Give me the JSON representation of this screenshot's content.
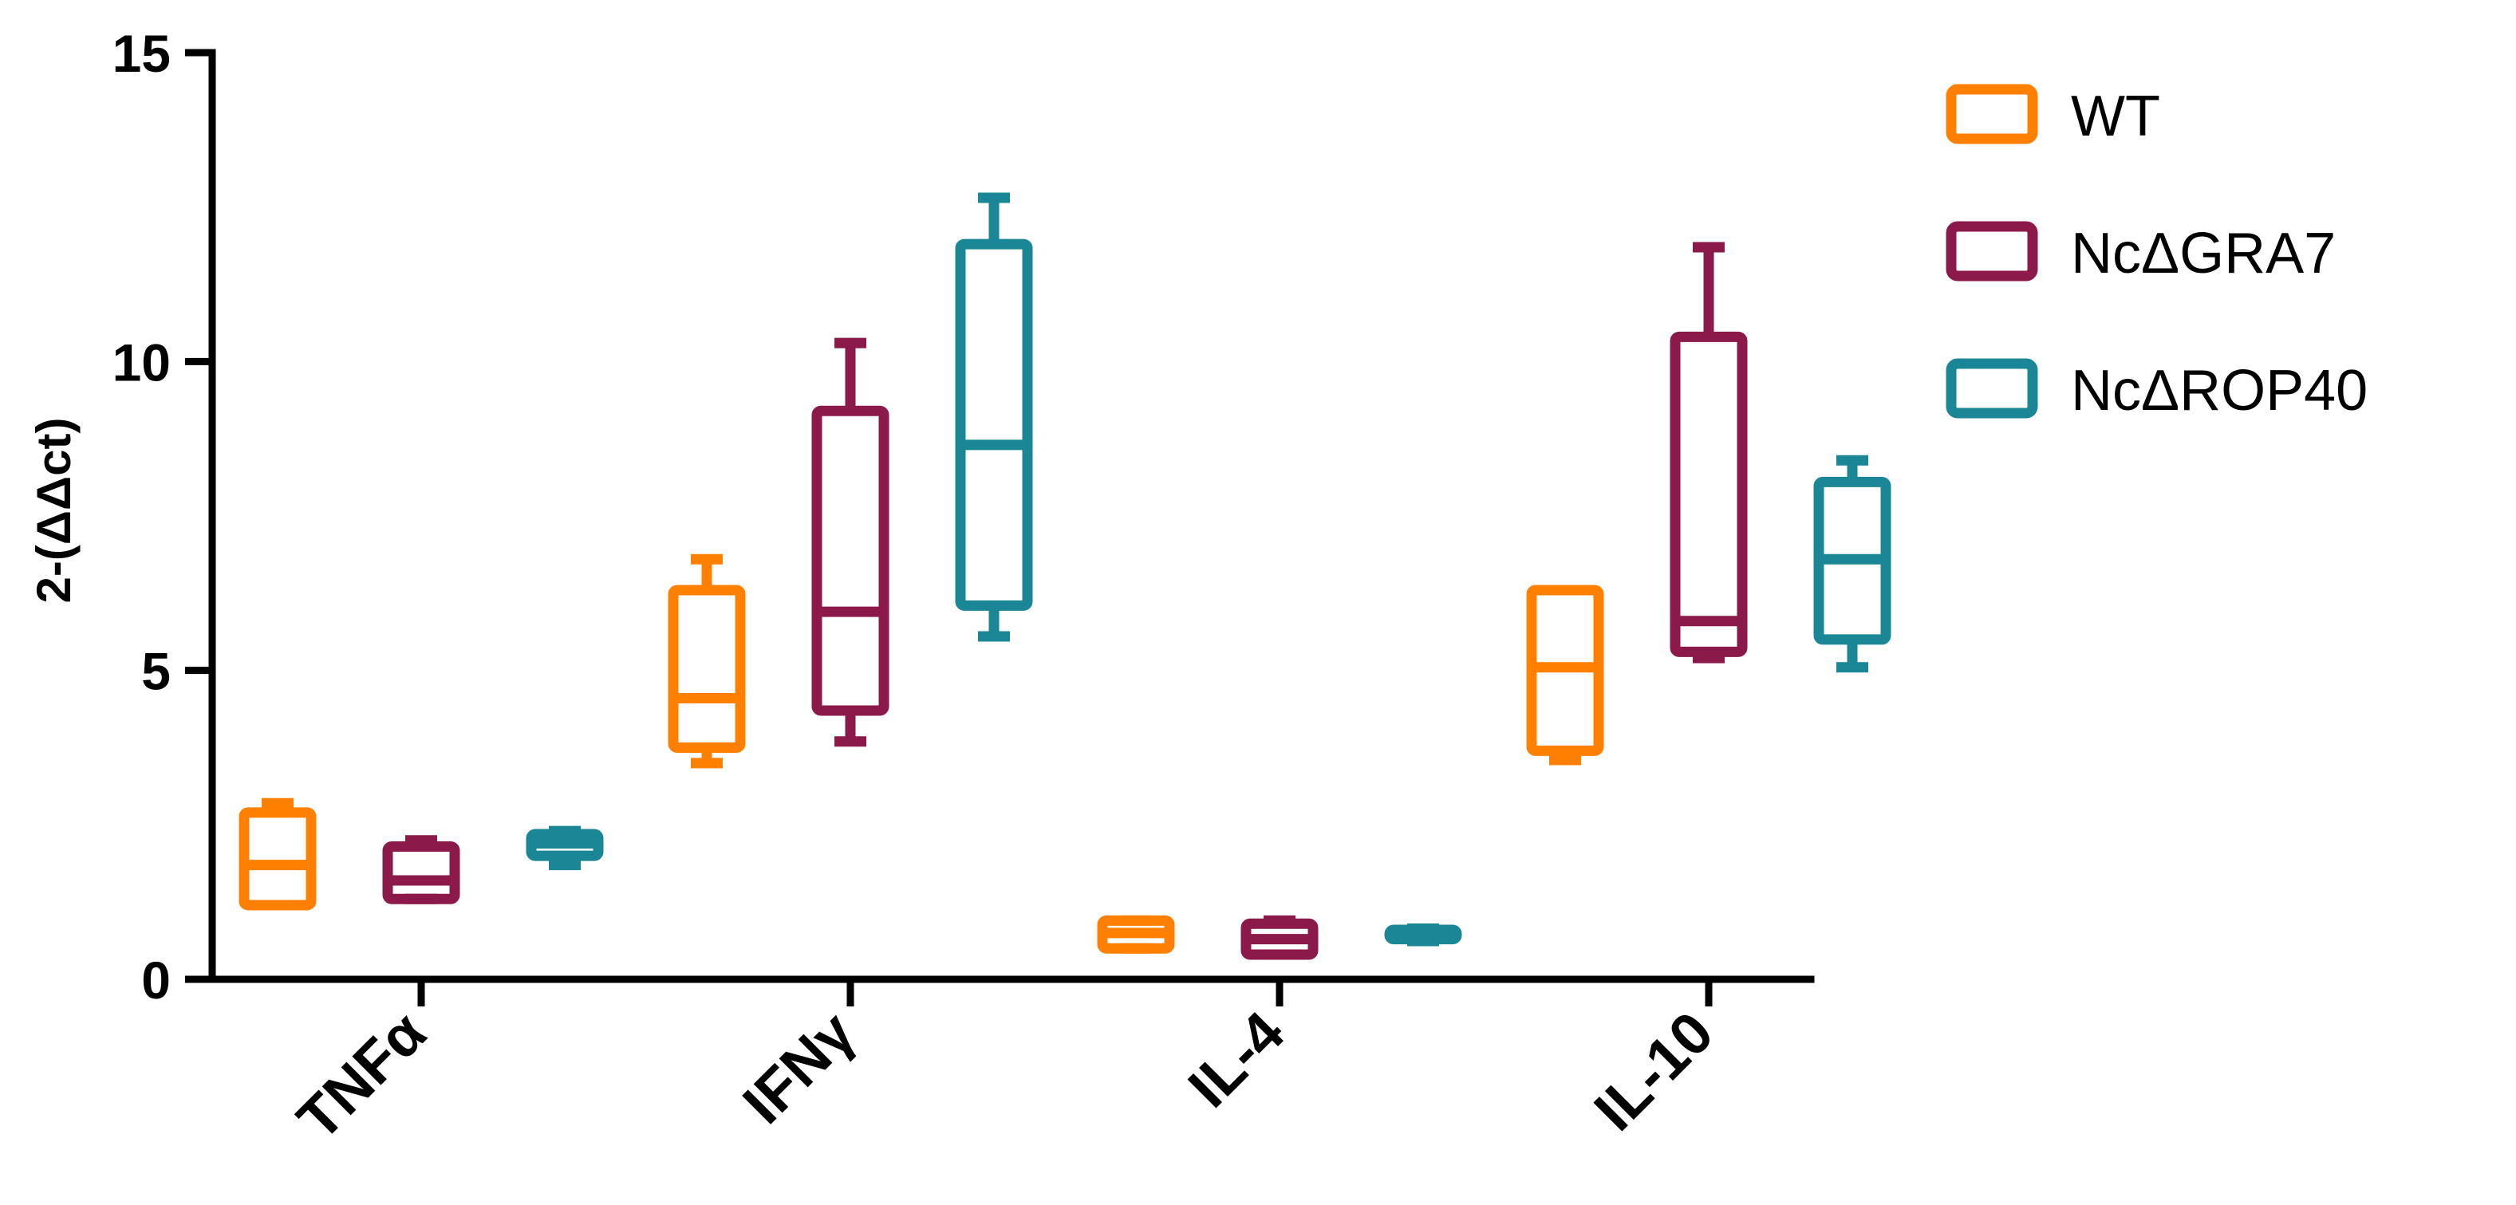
{
  "chart_data": {
    "type": "box",
    "categories": [
      "TNFα",
      "IFNγ",
      "IL-4",
      "IL-10"
    ],
    "ylabel": "2-(ΔΔct)",
    "ylim": [
      0,
      15
    ],
    "yticks": [
      0,
      5,
      10,
      15
    ],
    "grid": false,
    "legend": "right",
    "series": [
      {
        "name": "WT",
        "color": "#FF8000",
        "boxes": [
          {
            "min": 1.2,
            "q1": 1.2,
            "median": 1.85,
            "q3": 2.7,
            "max": 2.85
          },
          {
            "min": 3.5,
            "q1": 3.75,
            "median": 4.55,
            "q3": 6.3,
            "max": 6.8
          },
          {
            "min": 0.5,
            "q1": 0.5,
            "median": 0.75,
            "q3": 0.95,
            "max": 0.95
          },
          {
            "min": 3.55,
            "q1": 3.7,
            "median": 5.05,
            "q3": 6.3,
            "max": 6.3
          }
        ]
      },
      {
        "name": "NcΔGRA7",
        "color": "#8B1A4A",
        "boxes": [
          {
            "min": 1.3,
            "q1": 1.3,
            "median": 1.6,
            "q3": 2.15,
            "max": 2.25
          },
          {
            "min": 3.85,
            "q1": 4.35,
            "median": 5.95,
            "q3": 9.2,
            "max": 10.3
          },
          {
            "min": 0.4,
            "q1": 0.4,
            "median": 0.65,
            "q3": 0.9,
            "max": 0.95
          },
          {
            "min": 5.2,
            "q1": 5.3,
            "median": 5.8,
            "q3": 10.4,
            "max": 11.85
          }
        ]
      },
      {
        "name": "NcΔROP40",
        "color": "#1A8696",
        "boxes": [
          {
            "min": 1.85,
            "q1": 2.0,
            "median": 2.2,
            "q3": 2.35,
            "max": 2.4
          },
          {
            "min": 5.55,
            "q1": 6.05,
            "median": 8.65,
            "q3": 11.9,
            "max": 12.65
          },
          {
            "min": 0.62,
            "q1": 0.65,
            "median": 0.72,
            "q3": 0.8,
            "max": 0.82
          },
          {
            "min": 5.05,
            "q1": 5.5,
            "median": 6.8,
            "q3": 8.05,
            "max": 8.4
          }
        ]
      }
    ]
  }
}
